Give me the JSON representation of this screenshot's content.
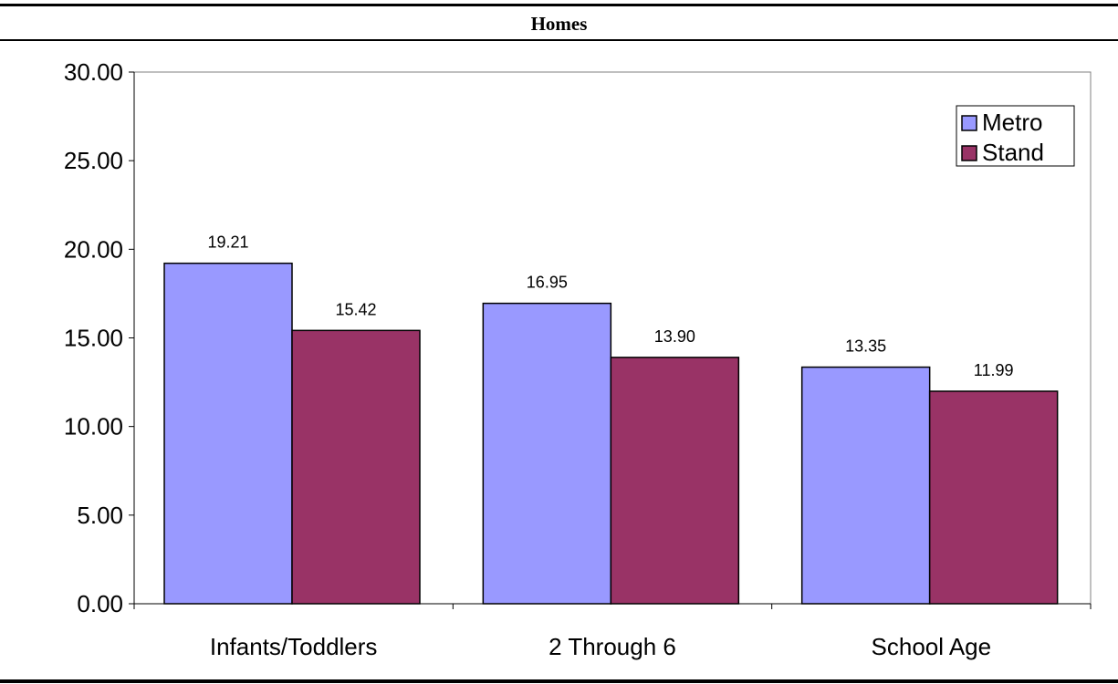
{
  "chart_data": {
    "type": "bar",
    "title": "Homes",
    "categories": [
      "Infants/Toddlers",
      "2 Through 6",
      "School Age"
    ],
    "series": [
      {
        "name": "Metro",
        "values": [
          19.21,
          16.95,
          13.35
        ],
        "color": "#9999ff"
      },
      {
        "name": "Stand",
        "values": [
          15.42,
          13.9,
          11.99
        ],
        "color": "#993366"
      }
    ],
    "ylim": [
      0,
      30
    ],
    "yticks": [
      "0.00",
      "5.00",
      "10.00",
      "15.00",
      "20.00",
      "25.00",
      "30.00"
    ],
    "data_labels": [
      [
        "19.21",
        "16.95",
        "13.35"
      ],
      [
        "15.42",
        "13.90",
        "11.99"
      ]
    ],
    "legend_position": "top-right",
    "grid": false
  }
}
